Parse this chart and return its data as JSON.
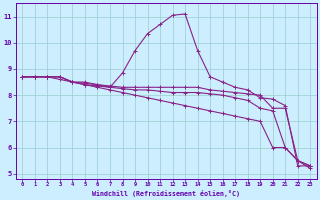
{
  "xlabel": "Windchill (Refroidissement éolien,°C)",
  "background_color": "#cceeff",
  "line_color": "#882288",
  "grid_color": "#99cccc",
  "spine_color": "#6600aa",
  "tick_color": "#6600aa",
  "xlim": [
    -0.5,
    23.5
  ],
  "ylim": [
    4.8,
    11.5
  ],
  "yticks": [
    5,
    6,
    7,
    8,
    9,
    10,
    11
  ],
  "xticks": [
    0,
    1,
    2,
    3,
    4,
    5,
    6,
    7,
    8,
    9,
    10,
    11,
    12,
    13,
    14,
    15,
    16,
    17,
    18,
    19,
    20,
    21,
    22,
    23
  ],
  "curves": [
    {
      "x": [
        0,
        1,
        2,
        3,
        4,
        5,
        6,
        7,
        8,
        9,
        10,
        11,
        12,
        13,
        14,
        15,
        16,
        17,
        18,
        19,
        20,
        21,
        22,
        23
      ],
      "y": [
        8.7,
        8.7,
        8.7,
        8.7,
        8.5,
        8.5,
        8.4,
        8.3,
        8.85,
        9.7,
        10.35,
        10.7,
        11.05,
        11.1,
        9.7,
        8.7,
        8.5,
        8.3,
        8.2,
        7.9,
        7.85,
        7.6,
        5.3,
        5.3
      ]
    },
    {
      "x": [
        0,
        1,
        2,
        3,
        4,
        5,
        6,
        7,
        8,
        9,
        10,
        11,
        12,
        13,
        14,
        15,
        16,
        17,
        18,
        19,
        20,
        21,
        22,
        23
      ],
      "y": [
        8.7,
        8.7,
        8.7,
        8.7,
        8.5,
        8.45,
        8.4,
        8.35,
        8.3,
        8.3,
        8.3,
        8.3,
        8.3,
        8.3,
        8.3,
        8.2,
        8.15,
        8.1,
        8.05,
        8.0,
        7.5,
        7.5,
        5.5,
        5.3
      ]
    },
    {
      "x": [
        0,
        1,
        2,
        3,
        4,
        5,
        6,
        7,
        8,
        9,
        10,
        11,
        12,
        13,
        14,
        15,
        16,
        17,
        18,
        19,
        20,
        21,
        22,
        23
      ],
      "y": [
        8.7,
        8.7,
        8.7,
        8.7,
        8.5,
        8.4,
        8.35,
        8.3,
        8.25,
        8.2,
        8.2,
        8.15,
        8.1,
        8.1,
        8.1,
        8.05,
        8.0,
        7.9,
        7.8,
        7.5,
        7.4,
        6.0,
        5.5,
        5.2
      ]
    },
    {
      "x": [
        0,
        1,
        2,
        3,
        4,
        5,
        6,
        7,
        8,
        9,
        10,
        11,
        12,
        13,
        14,
        15,
        16,
        17,
        18,
        19,
        20,
        21,
        22,
        23
      ],
      "y": [
        8.7,
        8.7,
        8.7,
        8.6,
        8.5,
        8.4,
        8.3,
        8.2,
        8.1,
        8.0,
        7.9,
        7.8,
        7.7,
        7.6,
        7.5,
        7.4,
        7.3,
        7.2,
        7.1,
        7.0,
        6.0,
        6.0,
        5.5,
        5.3
      ]
    }
  ]
}
